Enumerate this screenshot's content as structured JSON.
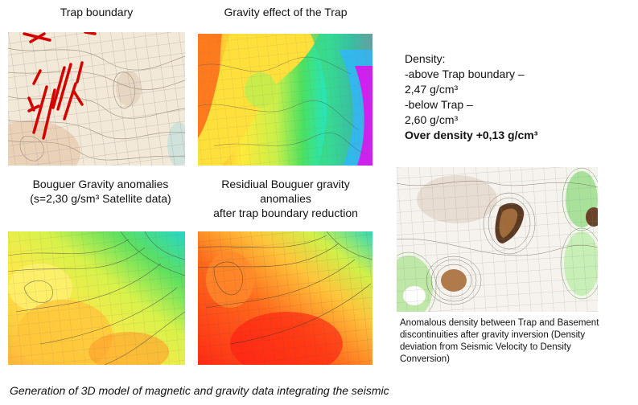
{
  "titles": {
    "trap_boundary": "Trap  boundary",
    "gravity_effect": "Gravity effect of the Trap",
    "bouguer_line1": "Bouguer Gravity anomalies",
    "bouguer_line2": "(s=2,30 g/sm³ Satellite data)",
    "residual_line1": "Residiual Bouguer gravity",
    "residual_line2": "anomalies",
    "residual_line3": "after trap boundary reduction"
  },
  "density": {
    "heading": "Density:",
    "above_label": "-above Trap boundary –",
    "above_value": "2,47 g/cm³",
    "below_label": "-below Trap –",
    "below_value": "2,60 g/cm³",
    "over_density": "Over density +0,13 g/cm³"
  },
  "anomalous_caption": "Anomalous density between Trap and Basement discontinuities after gravity inversion (Density deviation from Seismic Velocity to Density Conversion)",
  "footer": "Generation of 3D model of magnetic and gravity data integrating the seismic"
}
